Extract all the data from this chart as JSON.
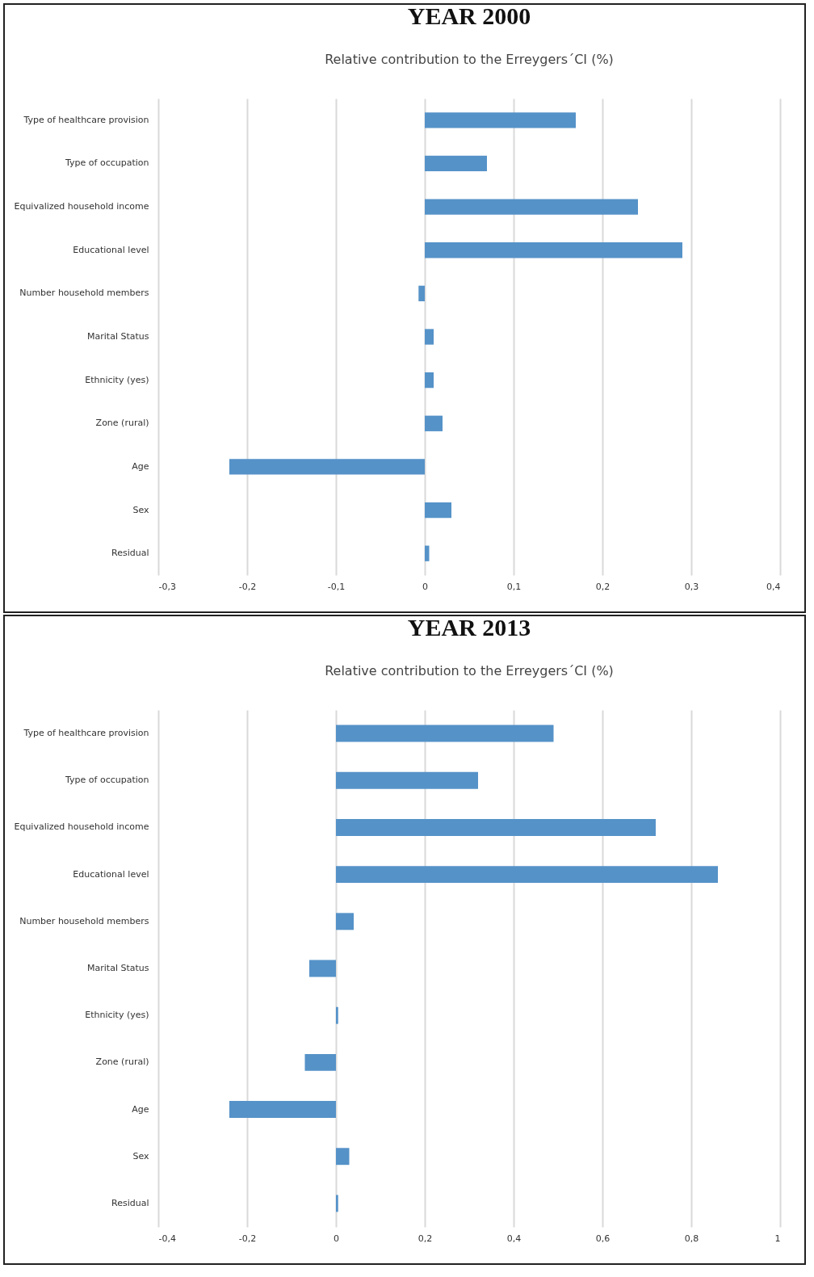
{
  "chart_data": [
    {
      "type": "bar",
      "orientation": "horizontal",
      "title": "YEAR 2000",
      "subtitle": "Relative contribution to the Erreygers´CI (%)",
      "categories": [
        "Type of healthcare provision",
        "Type of occupation",
        "Equivalized household income",
        "Educational level",
        "Number household members",
        "Marital Status",
        "Ethnicity (yes)",
        "Zone (rural)",
        "Age",
        "Sex",
        "Residual"
      ],
      "values": [
        0.17,
        0.07,
        0.24,
        0.29,
        -0.007,
        0.01,
        0.01,
        0.02,
        -0.22,
        0.03,
        0.005
      ],
      "color": "#5592c8",
      "xlim": [
        -0.3,
        0.4
      ],
      "xticks": [
        {
          "value": -0.3,
          "label": "-0,3"
        },
        {
          "value": -0.2,
          "label": "-0,2"
        },
        {
          "value": -0.1,
          "label": "-0,1"
        },
        {
          "value": 0,
          "label": "0"
        },
        {
          "value": 0.1,
          "label": "0,1"
        },
        {
          "value": 0.2,
          "label": "0,2"
        },
        {
          "value": 0.3,
          "label": "0,3"
        },
        {
          "value": 0.4,
          "label": "0,4"
        }
      ],
      "grid": true
    },
    {
      "type": "bar",
      "orientation": "horizontal",
      "title": "YEAR 2013",
      "subtitle": "Relative contribution to the Erreygers´CI (%)",
      "categories": [
        "Type of healthcare provision",
        "Type of occupation",
        "Equivalized household income",
        "Educational level",
        "Number household members",
        "Marital Status",
        "Ethnicity (yes)",
        "Zone (rural)",
        "Age",
        "Sex",
        "Residual"
      ],
      "values": [
        0.49,
        0.32,
        0.72,
        0.86,
        0.04,
        -0.06,
        0.005,
        -0.07,
        -0.24,
        0.03,
        0.005
      ],
      "color": "#5592c8",
      "xlim": [
        -0.4,
        1
      ],
      "xticks": [
        {
          "value": -0.4,
          "label": "-0,4"
        },
        {
          "value": -0.2,
          "label": "-0,2"
        },
        {
          "value": 0,
          "label": "0"
        },
        {
          "value": 0.2,
          "label": "0,2"
        },
        {
          "value": 0.4,
          "label": "0,4"
        },
        {
          "value": 0.6,
          "label": "0,6"
        },
        {
          "value": 0.8,
          "label": "0,8"
        },
        {
          "value": 1,
          "label": "1"
        }
      ],
      "grid": true
    }
  ]
}
